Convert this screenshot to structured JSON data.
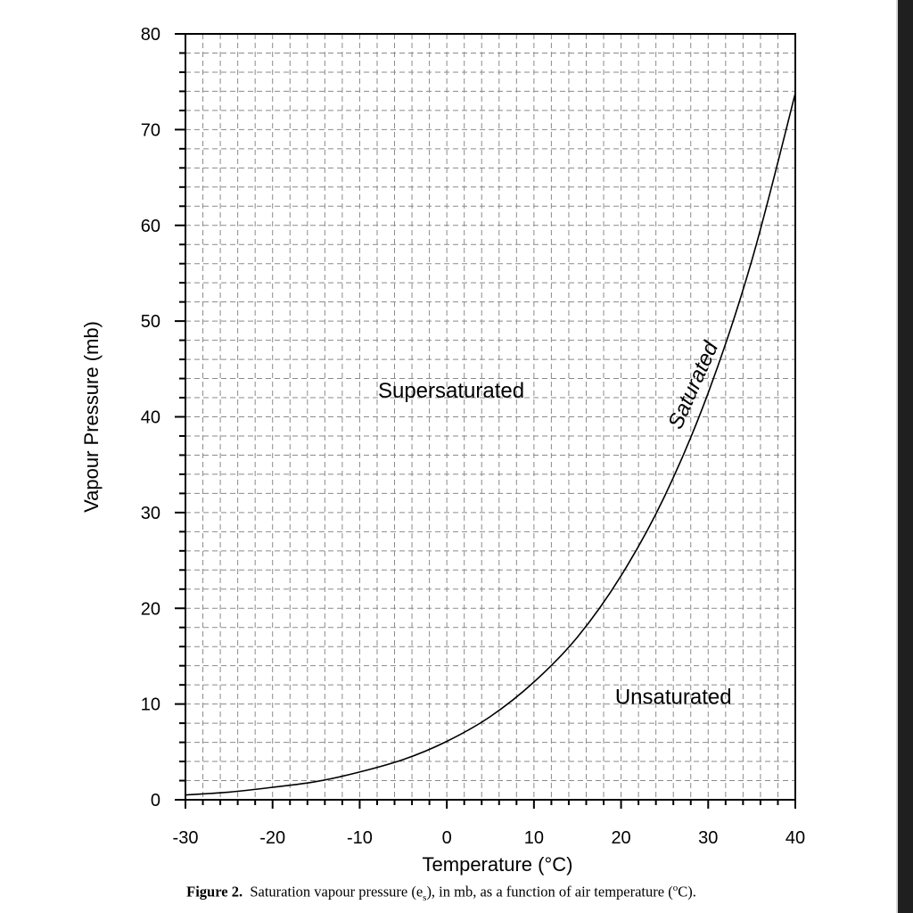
{
  "chart_data": {
    "type": "line",
    "xlabel": "Temperature (°C)",
    "ylabel": "Vapour Pressure (mb)",
    "xlim": [
      -30,
      40
    ],
    "ylim": [
      0,
      80
    ],
    "x_major_ticks": [
      -30,
      -20,
      -10,
      0,
      10,
      20,
      30,
      40
    ],
    "y_major_ticks": [
      0,
      10,
      20,
      30,
      40,
      50,
      60,
      70,
      80
    ],
    "x_tick_labels": [
      "-30",
      "-20",
      "-10",
      "0",
      "10",
      "20",
      "30",
      "40"
    ],
    "y_tick_labels": [
      "0",
      "10",
      "20",
      "30",
      "40",
      "50",
      "60",
      "70",
      "80"
    ],
    "grid": "dashed, every 2 °C and 2 mb",
    "series": [
      {
        "name": "Saturated",
        "x": [
          -30,
          -25,
          -20,
          -15,
          -10,
          -5,
          0,
          5,
          10,
          15,
          20,
          25,
          30,
          35,
          40
        ],
        "y": [
          0.5,
          0.8,
          1.3,
          1.9,
          2.9,
          4.2,
          6.1,
          8.7,
          12.3,
          17.0,
          23.4,
          31.7,
          42.5,
          56.3,
          73.8
        ]
      }
    ],
    "annotations": [
      {
        "text": "Supersaturated",
        "x": 0.5,
        "y": 42
      },
      {
        "text": "Unsaturated",
        "x": 26,
        "y": 10
      },
      {
        "text": "Saturated",
        "x": 29,
        "y": 43,
        "rotation": "along curve"
      }
    ]
  },
  "caption": {
    "label": "Figure 2.",
    "text": "Saturation vapour pressure (e",
    "subscript": "s",
    "text_after": "), in mb, as a function of air temperature (",
    "superscript": "o",
    "text_end": "C)."
  }
}
